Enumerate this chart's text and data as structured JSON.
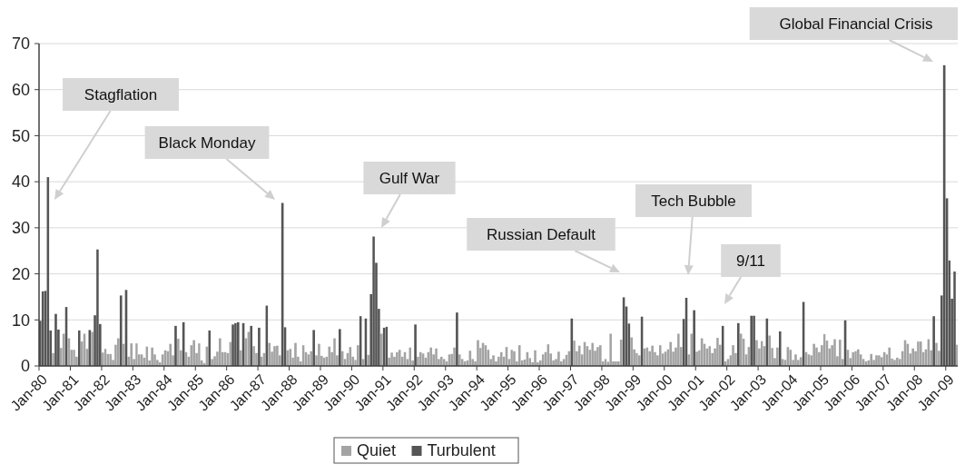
{
  "chart_data": {
    "type": "bar",
    "x": [
      "1980-01",
      "1980-02",
      "1980-03",
      "1980-04",
      "1980-05",
      "1980-06",
      "1980-07",
      "1980-08",
      "1980-09",
      "1980-10",
      "1980-11",
      "1980-12",
      "1981-01",
      "1981-02",
      "1981-03",
      "1981-04",
      "1981-05",
      "1981-06",
      "1981-07",
      "1981-08",
      "1981-09",
      "1981-10",
      "1981-11",
      "1981-12",
      "1982-01",
      "1982-02",
      "1982-03",
      "1982-04",
      "1982-05",
      "1982-06",
      "1982-07",
      "1982-08",
      "1982-09",
      "1982-10",
      "1982-11",
      "1982-12",
      "1983-01",
      "1983-02",
      "1983-03",
      "1983-04",
      "1983-05",
      "1983-06",
      "1983-07",
      "1983-08",
      "1983-09",
      "1983-10",
      "1983-11",
      "1983-12",
      "1984-01",
      "1984-02",
      "1984-03",
      "1984-04",
      "1984-05",
      "1984-06",
      "1984-07",
      "1984-08",
      "1984-09",
      "1984-10",
      "1984-11",
      "1984-12",
      "1985-01",
      "1985-02",
      "1985-03",
      "1985-04",
      "1985-05",
      "1985-06",
      "1985-07",
      "1985-08",
      "1985-09",
      "1985-10",
      "1985-11",
      "1985-12",
      "1986-01",
      "1986-02",
      "1986-03",
      "1986-04",
      "1986-05",
      "1986-06",
      "1986-07",
      "1986-08",
      "1986-09",
      "1986-10",
      "1986-11",
      "1986-12",
      "1987-01",
      "1987-02",
      "1987-03",
      "1987-04",
      "1987-05",
      "1987-06",
      "1987-07",
      "1987-08",
      "1987-09",
      "1987-10",
      "1987-11",
      "1987-12",
      "1988-01",
      "1988-02",
      "1988-03",
      "1988-04",
      "1988-05",
      "1988-06",
      "1988-07",
      "1988-08",
      "1988-09",
      "1988-10",
      "1988-11",
      "1988-12",
      "1989-01",
      "1989-02",
      "1989-03",
      "1989-04",
      "1989-05",
      "1989-06",
      "1989-07",
      "1989-08",
      "1989-09",
      "1989-10",
      "1989-11",
      "1989-12",
      "1990-01",
      "1990-02",
      "1990-03",
      "1990-04",
      "1990-05",
      "1990-06",
      "1990-07",
      "1990-08",
      "1990-09",
      "1990-10",
      "1990-11",
      "1990-12",
      "1991-01",
      "1991-02",
      "1991-03",
      "1991-04",
      "1991-05",
      "1991-06",
      "1991-07",
      "1991-08",
      "1991-09",
      "1991-10",
      "1991-11",
      "1991-12",
      "1992-01",
      "1992-02",
      "1992-03",
      "1992-04",
      "1992-05",
      "1992-06",
      "1992-07",
      "1992-08",
      "1992-09",
      "1992-10",
      "1992-11",
      "1992-12",
      "1993-01",
      "1993-02",
      "1993-03",
      "1993-04",
      "1993-05",
      "1993-06",
      "1993-07",
      "1993-08",
      "1993-09",
      "1993-10",
      "1993-11",
      "1993-12",
      "1994-01",
      "1994-02",
      "1994-03",
      "1994-04",
      "1994-05",
      "1994-06",
      "1994-07",
      "1994-08",
      "1994-09",
      "1994-10",
      "1994-11",
      "1994-12",
      "1995-01",
      "1995-02",
      "1995-03",
      "1995-04",
      "1995-05",
      "1995-06",
      "1995-07",
      "1995-08",
      "1995-09",
      "1995-10",
      "1995-11",
      "1995-12",
      "1996-01",
      "1996-02",
      "1996-03",
      "1996-04",
      "1996-05",
      "1996-06",
      "1996-07",
      "1996-08",
      "1996-09",
      "1996-10",
      "1996-11",
      "1996-12",
      "1997-01",
      "1997-02",
      "1997-03",
      "1997-04",
      "1997-05",
      "1997-06",
      "1997-07",
      "1997-08",
      "1997-09",
      "1997-10",
      "1997-11",
      "1997-12",
      "1998-01",
      "1998-02",
      "1998-03",
      "1998-04",
      "1998-05",
      "1998-06",
      "1998-07",
      "1998-08",
      "1998-09",
      "1998-10",
      "1998-11",
      "1998-12",
      "1999-01",
      "1999-02",
      "1999-03",
      "1999-04",
      "1999-05",
      "1999-06",
      "1999-07",
      "1999-08",
      "1999-09",
      "1999-10",
      "1999-11",
      "1999-12",
      "2000-01",
      "2000-02",
      "2000-03",
      "2000-04",
      "2000-05",
      "2000-06",
      "2000-07",
      "2000-08",
      "2000-09",
      "2000-10",
      "2000-11",
      "2000-12",
      "2001-01",
      "2001-02",
      "2001-03",
      "2001-04",
      "2001-05",
      "2001-06",
      "2001-07",
      "2001-08",
      "2001-09",
      "2001-10",
      "2001-11",
      "2001-12",
      "2002-01",
      "2002-02",
      "2002-03",
      "2002-04",
      "2002-05",
      "2002-06",
      "2002-07",
      "2002-08",
      "2002-09",
      "2002-10",
      "2002-11",
      "2002-12",
      "2003-01",
      "2003-02",
      "2003-03",
      "2003-04",
      "2003-05",
      "2003-06",
      "2003-07",
      "2003-08",
      "2003-09",
      "2003-10",
      "2003-11",
      "2003-12",
      "2004-01",
      "2004-02",
      "2004-03",
      "2004-04",
      "2004-05",
      "2004-06",
      "2004-07",
      "2004-08",
      "2004-09",
      "2004-10",
      "2004-11",
      "2004-12",
      "2005-01",
      "2005-02",
      "2005-03",
      "2005-04",
      "2005-05",
      "2005-06",
      "2005-07",
      "2005-08",
      "2005-09",
      "2005-10",
      "2005-11",
      "2005-12",
      "2006-01",
      "2006-02",
      "2006-03",
      "2006-04",
      "2006-05",
      "2006-06",
      "2006-07",
      "2006-08",
      "2006-09",
      "2006-10",
      "2006-11",
      "2006-12",
      "2007-01",
      "2007-02",
      "2007-03",
      "2007-04",
      "2007-05",
      "2007-06",
      "2007-07",
      "2007-08",
      "2007-09",
      "2007-10",
      "2007-11",
      "2007-12",
      "2008-01",
      "2008-02",
      "2008-03",
      "2008-04",
      "2008-05",
      "2008-06",
      "2008-07",
      "2008-08",
      "2008-09",
      "2008-10",
      "2008-11",
      "2008-12",
      "2009-01",
      "2009-02",
      "2009-03",
      "2009-04",
      "2009-05"
    ],
    "series": [
      {
        "name": "Quiet",
        "color": "#a3a3a3",
        "values": [
          null,
          null,
          null,
          null,
          null,
          2.8,
          null,
          null,
          3.9,
          7,
          null,
          6,
          3.5,
          3.5,
          2,
          null,
          5.3,
          7,
          3.7,
          null,
          7.4,
          null,
          null,
          null,
          2.9,
          3.7,
          2.6,
          2.6,
          1.3,
          4.6,
          6,
          null,
          4.8,
          null,
          2,
          4.9,
          1.5,
          4.9,
          2.5,
          2.5,
          1.8,
          4.2,
          1.2,
          4,
          2.5,
          1.3,
          0.8,
          2.5,
          3.4,
          3.2,
          4.8,
          2.3,
          null,
          5.9,
          3.4,
          null,
          3,
          2,
          4.5,
          5.6,
          2.8,
          4.9,
          1.2,
          0.6,
          4.2,
          null,
          1.5,
          2.1,
          3.1,
          6,
          3,
          3,
          2.8,
          5.2,
          null,
          null,
          null,
          3.4,
          null,
          6,
          7.4,
          null,
          4.3,
          2.8,
          null,
          2,
          2.8,
          null,
          5,
          3.1,
          4.3,
          4.4,
          2.3,
          null,
          null,
          3.4,
          3.7,
          1.8,
          5,
          2,
          1,
          4.5,
          3,
          2.5,
          3.2,
          null,
          2.3,
          4.8,
          2.2,
          1.8,
          2,
          4.2,
          3,
          6,
          2.3,
          null,
          3.2,
          1.5,
          2.8,
          4.1,
          2,
          1.3,
          4.5,
          null,
          1.5,
          null,
          2.4,
          null,
          null,
          null,
          null,
          7,
          null,
          null,
          1.8,
          2.9,
          2,
          3,
          3.5,
          2,
          3,
          1.5,
          4,
          1.2,
          null,
          2,
          3,
          2.7,
          1.8,
          3,
          4,
          2.5,
          3.8,
          1.5,
          2,
          1.5,
          1,
          2.5,
          2.6,
          4,
          null,
          2.5,
          1.5,
          1,
          1.2,
          3.3,
          1.5,
          1,
          5.6,
          3.9,
          5,
          4.5,
          3.5,
          1.5,
          2.3,
          1,
          2,
          3,
          2,
          4.1,
          1.5,
          3.5,
          3.2,
          1,
          4.5,
          1.2,
          1.4,
          3,
          1.7,
          0.8,
          3.4,
          0.8,
          1.2,
          2.5,
          3,
          4.7,
          2.7,
          1.2,
          1.5,
          3.1,
          1,
          1.5,
          2.4,
          3.2,
          null,
          5.5,
          3.2,
          4.4,
          2.5,
          5.2,
          4.3,
          3.5,
          5,
          3.3,
          4.1,
          4.5,
          1,
          1.5,
          0.9,
          7,
          1,
          1,
          1,
          5.7,
          null,
          null,
          null,
          6.2,
          3.6,
          2.8,
          2.3,
          null,
          3.8,
          4,
          3.2,
          4.4,
          3,
          2.3,
          4.5,
          2.7,
          3.1,
          3.6,
          5.2,
          3.1,
          4,
          7,
          4.1,
          null,
          null,
          2.5,
          7,
          null,
          3.1,
          3.4,
          6,
          4.8,
          3.8,
          4.3,
          2.8,
          3.8,
          6.1,
          4.6,
          null,
          1,
          1.5,
          2.3,
          4.5,
          2.8,
          null,
          7,
          5.9,
          2.5,
          4.1,
          null,
          null,
          5.6,
          3.8,
          5.4,
          4.3,
          null,
          6.6,
          3.9,
          1.7,
          4,
          null,
          1.5,
          1.3,
          4.1,
          3.5,
          1.3,
          2.5,
          1.3,
          1.9,
          null,
          3,
          2.5,
          2.3,
          4.8,
          4,
          3,
          4.5,
          6.9,
          5.5,
          3.8,
          4.5,
          5.8,
          2.1,
          5.7,
          1.5,
          null,
          3.5,
          1.7,
          3,
          3.2,
          3.6,
          2.5,
          1.5,
          1,
          1.2,
          2.6,
          1.3,
          2.3,
          2.3,
          1.9,
          3,
          2.5,
          4,
          1.6,
          1.3,
          1.8,
          1.5,
          3.2,
          5.6,
          4.8,
          2.7,
          3.8,
          3.2,
          5.3,
          5.3,
          3,
          3.6,
          5.8,
          3.4,
          null,
          5,
          3.3,
          null,
          null,
          null,
          null,
          null,
          null,
          4.6
        ]
      },
      {
        "name": "Turbulent",
        "color": "#555555",
        "values": [
          9.8,
          16.2,
          16.3,
          41,
          7.7,
          null,
          11.3,
          7.9,
          null,
          null,
          12.8,
          null,
          null,
          null,
          null,
          7.7,
          null,
          null,
          null,
          7.8,
          null,
          11,
          25.3,
          9.1,
          null,
          null,
          null,
          null,
          null,
          null,
          null,
          15.3,
          null,
          16.5,
          null,
          null,
          null,
          null,
          null,
          null,
          null,
          null,
          null,
          null,
          null,
          null,
          null,
          null,
          null,
          null,
          null,
          null,
          8.7,
          null,
          null,
          9.5,
          null,
          null,
          null,
          null,
          null,
          null,
          null,
          null,
          null,
          7.7,
          null,
          null,
          null,
          null,
          null,
          null,
          null,
          null,
          9,
          9.3,
          9.5,
          null,
          9.3,
          null,
          null,
          8.7,
          null,
          null,
          8.3,
          null,
          null,
          13.1,
          null,
          null,
          null,
          null,
          null,
          35.4,
          8.4,
          null,
          null,
          null,
          null,
          null,
          null,
          null,
          null,
          null,
          null,
          7.8,
          null,
          null,
          null,
          null,
          null,
          null,
          null,
          null,
          null,
          8,
          null,
          null,
          null,
          null,
          null,
          null,
          null,
          10.8,
          null,
          10.3,
          null,
          15.6,
          28.1,
          22.4,
          12.4,
          null,
          8.3,
          8.5,
          null,
          null,
          null,
          null,
          null,
          null,
          null,
          null,
          null,
          null,
          9,
          null,
          null,
          null,
          null,
          null,
          null,
          null,
          null,
          null,
          null,
          null,
          null,
          null,
          null,
          null,
          11.6,
          null,
          null,
          null,
          null,
          null,
          null,
          null,
          null,
          null,
          null,
          null,
          null,
          null,
          null,
          null,
          null,
          null,
          null,
          null,
          null,
          null,
          null,
          null,
          null,
          null,
          null,
          null,
          null,
          null,
          null,
          null,
          null,
          null,
          null,
          null,
          null,
          null,
          null,
          null,
          null,
          null,
          null,
          null,
          10.3,
          null,
          null,
          null,
          null,
          null,
          null,
          null,
          null,
          null,
          null,
          null,
          null,
          null,
          null,
          null,
          null,
          null,
          null,
          null,
          14.9,
          12.9,
          9.2,
          null,
          null,
          null,
          null,
          10.7,
          null,
          null,
          null,
          null,
          null,
          null,
          null,
          null,
          null,
          null,
          null,
          null,
          null,
          null,
          null,
          10.2,
          14.8,
          null,
          null,
          12.1,
          null,
          null,
          null,
          null,
          null,
          null,
          null,
          null,
          null,
          null,
          8.7,
          null,
          null,
          null,
          null,
          null,
          9.3,
          null,
          null,
          null,
          null,
          10.9,
          10.9,
          null,
          null,
          null,
          null,
          10.3,
          null,
          null,
          null,
          null,
          7.5,
          null,
          null,
          null,
          null,
          null,
          null,
          null,
          null,
          13.9,
          null,
          null,
          null,
          null,
          null,
          null,
          null,
          null,
          null,
          null,
          null,
          null,
          null,
          null,
          null,
          9.9,
          null,
          null,
          null,
          null,
          null,
          null,
          null,
          null,
          null,
          null,
          null,
          null,
          null,
          null,
          null,
          null,
          null,
          null,
          null,
          null,
          null,
          null,
          null,
          null,
          null,
          null,
          null,
          null,
          null,
          null,
          null,
          null,
          null,
          10.8,
          null,
          null,
          15.3,
          65.3,
          36.4,
          22.9,
          14.6,
          20.5,
          null
        ]
      }
    ],
    "xlim": [
      "1980-01",
      "2009-06"
    ],
    "xticks": [
      {
        "value": "1980-01",
        "label": "Jan-80"
      },
      {
        "value": "1981-01",
        "label": "Jan-81"
      },
      {
        "value": "1982-01",
        "label": "Jan-82"
      },
      {
        "value": "1983-01",
        "label": "Jan-83"
      },
      {
        "value": "1984-01",
        "label": "Jan-84"
      },
      {
        "value": "1985-01",
        "label": "Jan-85"
      },
      {
        "value": "1986-01",
        "label": "Jan-86"
      },
      {
        "value": "1987-01",
        "label": "Jan-87"
      },
      {
        "value": "1988-01",
        "label": "Jan-88"
      },
      {
        "value": "1989-01",
        "label": "Jan-89"
      },
      {
        "value": "1990-01",
        "label": "Jan-90"
      },
      {
        "value": "1991-01",
        "label": "Jan-91"
      },
      {
        "value": "1992-01",
        "label": "Jan-92"
      },
      {
        "value": "1993-01",
        "label": "Jan-93"
      },
      {
        "value": "1994-01",
        "label": "Jan-94"
      },
      {
        "value": "1995-01",
        "label": "Jan-95"
      },
      {
        "value": "1996-01",
        "label": "Jan-96"
      },
      {
        "value": "1997-01",
        "label": "Jan-97"
      },
      {
        "value": "1998-01",
        "label": "Jan-98"
      },
      {
        "value": "1999-01",
        "label": "Jan-99"
      },
      {
        "value": "2000-01",
        "label": "Jan-00"
      },
      {
        "value": "2001-01",
        "label": "Jan-01"
      },
      {
        "value": "2002-01",
        "label": "Jan-02"
      },
      {
        "value": "2003-01",
        "label": "Jan-03"
      },
      {
        "value": "2004-01",
        "label": "Jan-04"
      },
      {
        "value": "2005-01",
        "label": "Jan-05"
      },
      {
        "value": "2006-01",
        "label": "Jan-06"
      },
      {
        "value": "2007-01",
        "label": "Jan-07"
      },
      {
        "value": "2008-01",
        "label": "Jan-08"
      },
      {
        "value": "2009-01",
        "label": "Jan-09"
      }
    ],
    "ylim": [
      0,
      70
    ],
    "yticks": [
      0,
      10,
      20,
      30,
      40,
      50,
      60,
      70
    ],
    "grid": "y",
    "legend": "bottom",
    "annotations": [
      "Stagflation",
      "Black Monday",
      "Gulf War",
      "Russian Default",
      "Tech Bubble",
      "9/11",
      "Global Financial Crisis"
    ]
  }
}
